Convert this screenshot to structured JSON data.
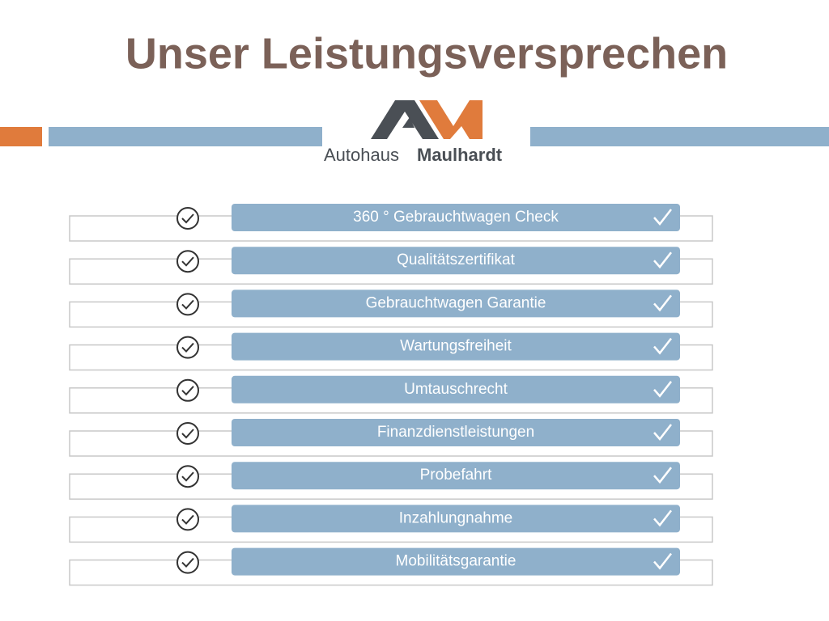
{
  "header": {
    "title": "Unser Leistungsversprechen"
  },
  "logo": {
    "prefix": "Autohaus",
    "name": "Maulhardt"
  },
  "items": [
    "360 ° Gebrauchtwagen Check",
    "Qualitätszertifikat",
    "Gebrauchtwagen Garantie",
    "Wartungsfreiheit",
    "Umtauschrecht",
    "Finanzdienstleistungen",
    "Probefahrt",
    "Inzahlungnahme",
    "Mobilitätsgarantie"
  ]
}
